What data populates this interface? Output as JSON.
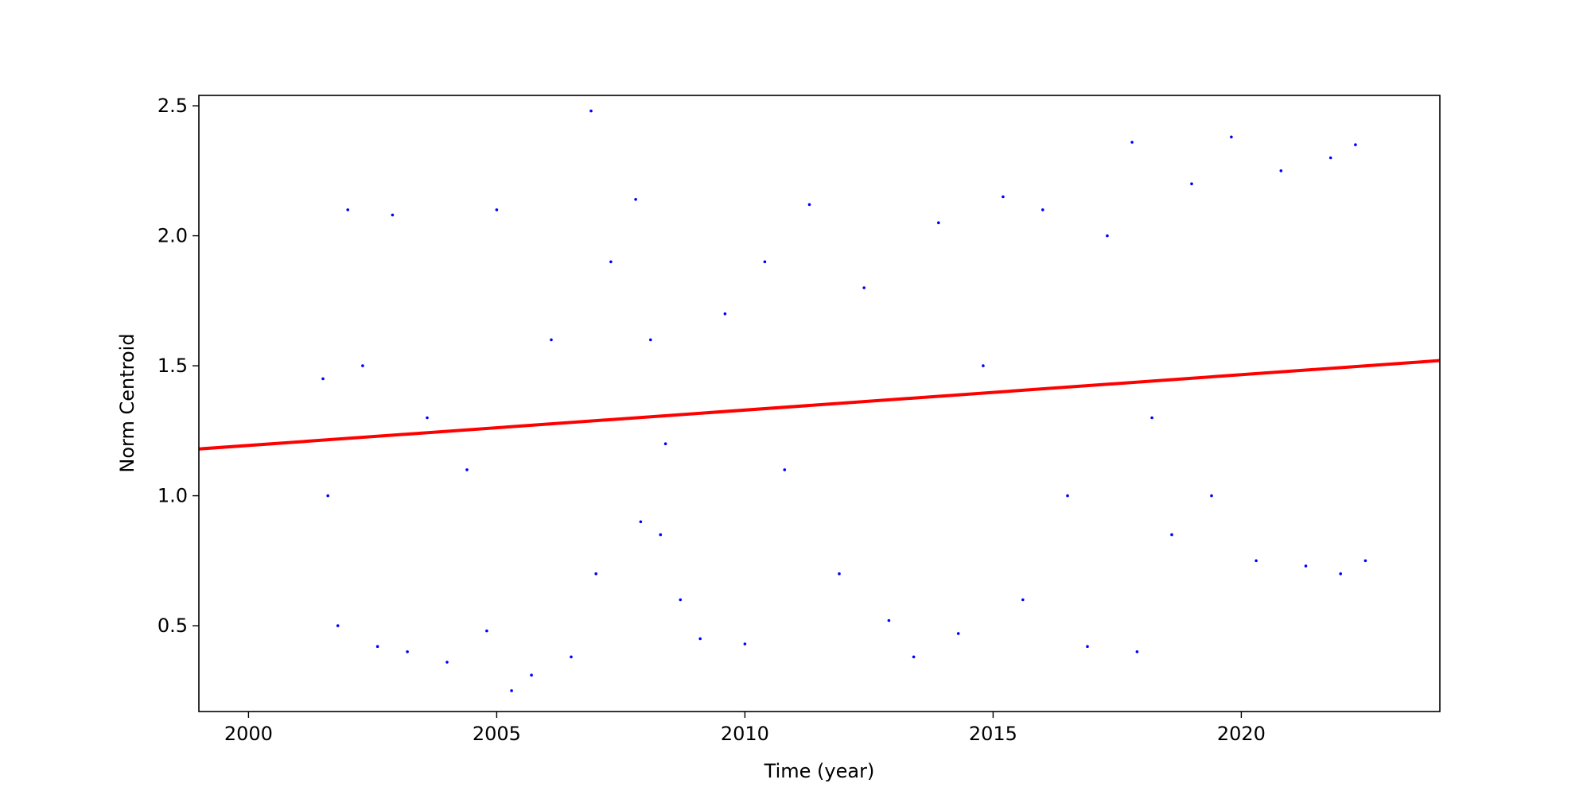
{
  "chart_data": {
    "type": "scatter",
    "title": "",
    "xlabel": "Time (year)",
    "ylabel": "Norm Centroid",
    "xlim": [
      1999.0,
      2024.0
    ],
    "ylim": [
      0.17,
      2.54
    ],
    "x_ticks": [
      2000,
      2005,
      2010,
      2015,
      2020
    ],
    "x_tick_labels": [
      "2000",
      "2005",
      "2010",
      "2015",
      "2020"
    ],
    "y_ticks": [
      0.5,
      1.0,
      1.5,
      2.0,
      2.5
    ],
    "y_tick_labels": [
      "0.5",
      "1.0",
      "1.5",
      "2.0",
      "2.5"
    ],
    "grid": false,
    "colors": {
      "points": "#0000ff",
      "fit": "#ff0000",
      "frame": "#000000"
    },
    "fit_line": {
      "x": [
        1999.0,
        2024.0
      ],
      "y": [
        1.18,
        1.52
      ]
    },
    "series": [
      {
        "marker": "dot",
        "x": [
          2001.5,
          2001.6,
          2001.8,
          2002.0,
          2002.3,
          2002.6,
          2002.9,
          2003.2,
          2003.6,
          2004.0,
          2004.4,
          2004.8,
          2005.0,
          2005.3,
          2005.7,
          2006.1,
          2006.5,
          2006.9,
          2007.0,
          2007.3,
          2007.8,
          2007.9,
          2008.1,
          2008.3,
          2008.4,
          2008.7,
          2009.1,
          2009.6,
          2010.0,
          2010.4,
          2010.8,
          2011.3,
          2011.9,
          2012.4,
          2012.9,
          2013.4,
          2013.9,
          2014.3,
          2014.8,
          2015.2,
          2015.6,
          2016.0,
          2016.5,
          2016.9,
          2017.3,
          2017.8,
          2017.9,
          2018.2,
          2018.6,
          2019.0,
          2019.4,
          2019.8,
          2020.3,
          2020.8,
          2021.3,
          2021.8,
          2022.0,
          2022.3,
          2022.5
        ],
        "y": [
          1.45,
          1.0,
          0.5,
          2.1,
          1.5,
          0.42,
          2.08,
          0.4,
          1.3,
          0.36,
          1.1,
          0.48,
          2.1,
          0.25,
          0.31,
          1.6,
          0.38,
          2.48,
          0.7,
          1.9,
          2.14,
          0.9,
          1.6,
          0.85,
          1.2,
          0.6,
          0.45,
          1.7,
          0.43,
          1.9,
          1.1,
          2.12,
          0.7,
          1.8,
          0.52,
          0.38,
          2.05,
          0.47,
          1.5,
          2.15,
          0.6,
          2.1,
          1.0,
          0.42,
          2.0,
          2.36,
          0.4,
          1.3,
          0.85,
          2.2,
          1.0,
          2.38,
          0.75,
          2.25,
          0.73,
          2.3,
          0.7,
          2.35,
          0.75
        ]
      }
    ]
  }
}
